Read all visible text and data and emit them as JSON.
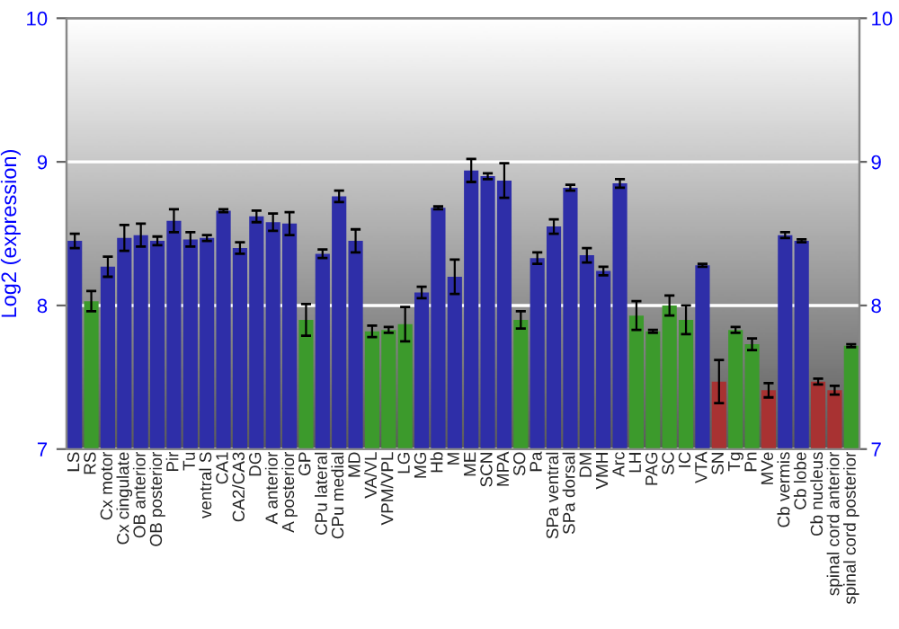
{
  "chart_data": {
    "type": "bar",
    "ylabel": "Log2 (expression)",
    "categories": [
      "LS",
      "RS",
      "Cx motor",
      "Cx cingulate",
      "OB anterior",
      "OB posterior",
      "Pir",
      "Tu",
      "ventral S",
      "CA1",
      "CA2/CA3",
      "DG",
      "A anterior",
      "A posterior",
      "GP",
      "CPu lateral",
      "CPu medial",
      "MD",
      "VA/VL",
      "VPM/VPL",
      "LG",
      "MG",
      "Hb",
      "M",
      "ME",
      "SCN",
      "MPA",
      "SO",
      "Pa",
      "SPa ventral",
      "SPa dorsal",
      "DM",
      "VMH",
      "Arc",
      "LH",
      "PAG",
      "SC",
      "IC",
      "VTA",
      "SN",
      "Tg",
      "Pn",
      "MVe",
      "Cb vermis",
      "Cb lobe",
      "Cb nucleus",
      "spinal cord anterior",
      "spinal cord posterior"
    ],
    "values": [
      8.45,
      8.03,
      8.27,
      8.47,
      8.49,
      8.45,
      8.59,
      8.46,
      8.47,
      8.66,
      8.4,
      8.62,
      8.58,
      8.57,
      7.9,
      8.36,
      8.76,
      8.45,
      7.82,
      7.83,
      7.87,
      8.09,
      8.68,
      8.2,
      8.94,
      8.9,
      8.87,
      7.9,
      8.33,
      8.55,
      8.82,
      8.35,
      8.24,
      8.85,
      7.93,
      7.82,
      8.0,
      7.9,
      8.28,
      7.47,
      7.83,
      7.73,
      7.41,
      8.49,
      8.45,
      7.47,
      7.41,
      7.72
    ],
    "errors": [
      0.05,
      0.07,
      0.07,
      0.09,
      0.08,
      0.03,
      0.08,
      0.05,
      0.02,
      0.01,
      0.04,
      0.04,
      0.06,
      0.08,
      0.11,
      0.03,
      0.04,
      0.08,
      0.04,
      0.02,
      0.12,
      0.04,
      0.01,
      0.12,
      0.08,
      0.02,
      0.12,
      0.06,
      0.04,
      0.05,
      0.02,
      0.05,
      0.03,
      0.03,
      0.1,
      0.01,
      0.07,
      0.1,
      0.01,
      0.15,
      0.02,
      0.04,
      0.05,
      0.02,
      0.01,
      0.02,
      0.03,
      0.01
    ],
    "colors": [
      "#2e2ea8",
      "#3c9a2c",
      "#2e2ea8",
      "#2e2ea8",
      "#2e2ea8",
      "#2e2ea8",
      "#2e2ea8",
      "#2e2ea8",
      "#2e2ea8",
      "#2e2ea8",
      "#2e2ea8",
      "#2e2ea8",
      "#2e2ea8",
      "#2e2ea8",
      "#3c9a2c",
      "#2e2ea8",
      "#2e2ea8",
      "#2e2ea8",
      "#3c9a2c",
      "#3c9a2c",
      "#3c9a2c",
      "#2e2ea8",
      "#2e2ea8",
      "#2e2ea8",
      "#2e2ea8",
      "#2e2ea8",
      "#2e2ea8",
      "#3c9a2c",
      "#2e2ea8",
      "#2e2ea8",
      "#2e2ea8",
      "#2e2ea8",
      "#2e2ea8",
      "#2e2ea8",
      "#3c9a2c",
      "#3c9a2c",
      "#3c9a2c",
      "#3c9a2c",
      "#2e2ea8",
      "#a83232",
      "#3c9a2c",
      "#3c9a2c",
      "#a83232",
      "#2e2ea8",
      "#2e2ea8",
      "#a83232",
      "#a83232",
      "#3c9a2c"
    ],
    "ylim": [
      7,
      10
    ],
    "yticks": [
      7,
      8,
      9,
      10
    ],
    "y2lim": [
      7,
      10
    ],
    "y2ticks": [
      7,
      8,
      9,
      10
    ],
    "grid": "y"
  }
}
